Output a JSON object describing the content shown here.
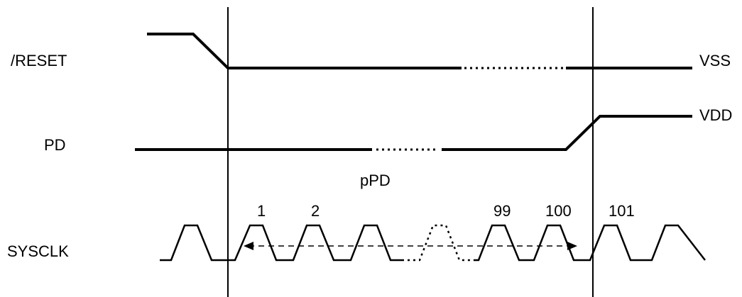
{
  "signals": {
    "reset": "/RESET",
    "pd": "PD",
    "sysclk": "SYSCLK"
  },
  "levels": {
    "vss": "VSS",
    "vdd": "VDD"
  },
  "interval_label": "pPD",
  "cycle_labels": [
    "1",
    "2",
    "99",
    "100",
    "101"
  ]
}
